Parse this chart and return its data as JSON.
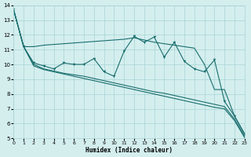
{
  "xlabel": "Humidex (Indice chaleur)",
  "xlim": [
    0,
    23
  ],
  "ylim": [
    5,
    14
  ],
  "xticks": [
    0,
    1,
    2,
    3,
    4,
    5,
    6,
    7,
    8,
    9,
    10,
    11,
    12,
    13,
    14,
    15,
    16,
    17,
    18,
    19,
    20,
    21,
    22,
    23
  ],
  "yticks": [
    5,
    6,
    7,
    8,
    9,
    10,
    11,
    12,
    13,
    14
  ],
  "bg_color": "#d4eeee",
  "grid_color": "#a8d4d4",
  "line_color": "#1a6e6e",
  "line1": [
    13.7,
    11.2,
    11.2,
    11.3,
    11.35,
    11.4,
    11.45,
    11.5,
    11.55,
    11.6,
    11.65,
    11.7,
    11.8,
    11.65,
    11.5,
    11.4,
    11.3,
    11.2,
    11.1,
    10.0,
    8.3,
    8.3,
    6.5,
    5.3
  ],
  "line2": [
    13.7,
    11.2,
    10.1,
    9.9,
    9.7,
    10.1,
    10.0,
    10.0,
    10.4,
    9.5,
    9.2,
    10.9,
    11.9,
    11.5,
    11.85,
    10.5,
    11.5,
    10.2,
    9.7,
    9.5,
    10.3,
    7.5,
    6.5,
    5.3
  ],
  "line3": [
    13.7,
    11.2,
    10.0,
    9.7,
    9.55,
    9.4,
    9.3,
    9.2,
    9.05,
    8.9,
    8.75,
    8.6,
    8.45,
    8.3,
    8.15,
    8.05,
    7.9,
    7.75,
    7.6,
    7.45,
    7.3,
    7.15,
    6.3,
    5.15
  ],
  "line4": [
    13.7,
    11.2,
    9.9,
    9.65,
    9.5,
    9.35,
    9.2,
    9.05,
    8.9,
    8.75,
    8.6,
    8.45,
    8.3,
    8.15,
    8.0,
    7.85,
    7.7,
    7.55,
    7.4,
    7.25,
    7.1,
    7.0,
    6.2,
    5.05
  ]
}
